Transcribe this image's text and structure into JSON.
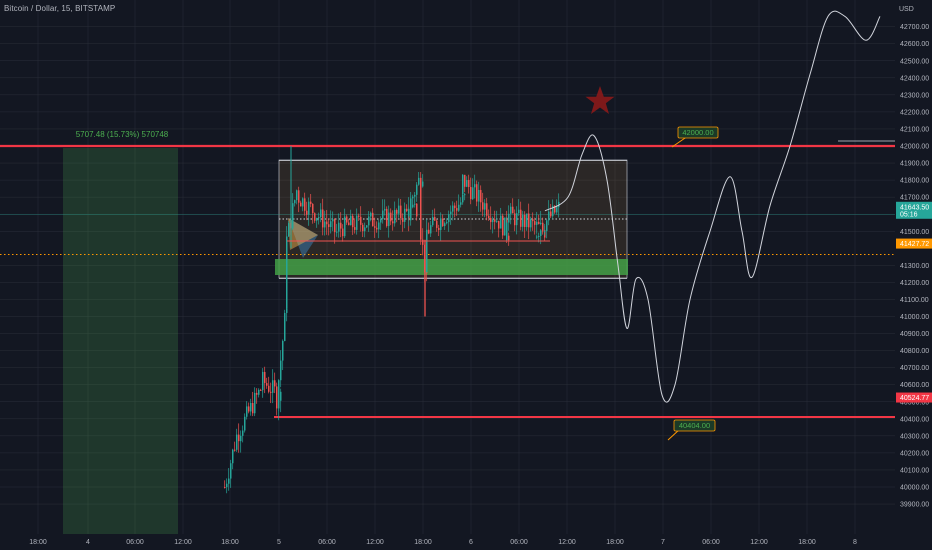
{
  "header": {
    "symbol": "Bitcoin / Dollar, 15, BITSTAMP"
  },
  "chart_data": {
    "type": "candlestick",
    "y_axis": {
      "currency": "USD",
      "range": [
        39900,
        42720
      ],
      "ticks": [
        39900,
        40000,
        40100,
        40200,
        40300,
        40400,
        40500,
        40600,
        40700,
        40800,
        40900,
        41000,
        41100,
        41200,
        41300,
        41500,
        41600,
        41700,
        41800,
        41900,
        42000,
        42100,
        42200,
        42300,
        42400,
        42500,
        42600,
        42700
      ],
      "tick_labels": [
        "39900.00",
        "40000.00",
        "40100.00",
        "40200.00",
        "40300.00",
        "40400.00",
        "40500.00",
        "40600.00",
        "40700.00",
        "40800.00",
        "40900.00",
        "41000.00",
        "41100.00",
        "41200.00",
        "41300.00",
        "41500.00",
        "41600.00",
        "41700.00",
        "41800.00",
        "41900.00",
        "42000.00",
        "42100.00",
        "42200.00",
        "42300.00",
        "42400.00",
        "42500.00",
        "42600.00",
        "42700.00"
      ]
    },
    "x_axis": {
      "tick_labels": [
        "18:00",
        "4",
        "06:00",
        "12:00",
        "18:00",
        "5",
        "06:00",
        "12:00",
        "18:00",
        "6",
        "06:00",
        "12:00",
        "18:00",
        "7",
        "06:00",
        "12:00",
        "18:00",
        "8"
      ]
    },
    "price_labels": [
      {
        "text": "41643.50",
        "value": 41643.5,
        "color": "#26a69a",
        "sub": "05:16"
      },
      {
        "text": "41427.72",
        "value": 41427.72,
        "color": "#ff9800"
      },
      {
        "text": "40524.77",
        "value": 40524.77,
        "color": "#f23645"
      }
    ],
    "horizontal_lines": [
      {
        "value": 42000,
        "color": "#f23645"
      },
      {
        "value": 40524.77,
        "color": "#f23645"
      },
      {
        "value": 41427.72,
        "color": "#ff9800",
        "style": "dotted"
      },
      {
        "value": 41643.5,
        "color": "#26a69a",
        "style": "solid-thin"
      }
    ],
    "annotations": {
      "measure_label": "5707.48 (15.73%) 570748",
      "target_high": "42000.00",
      "target_low": "40404.00"
    },
    "range_box": {
      "top": 41940,
      "bottom": 41290,
      "midline": 41600,
      "support_zone": [
        41320,
        41400
      ]
    },
    "projection_path": [
      {
        "x": 545,
        "y": 41620
      },
      {
        "x": 568,
        "y": 41700
      },
      {
        "x": 582,
        "y": 41950
      },
      {
        "x": 594,
        "y": 42060
      },
      {
        "x": 607,
        "y": 41800
      },
      {
        "x": 618,
        "y": 41300
      },
      {
        "x": 627,
        "y": 40930
      },
      {
        "x": 636,
        "y": 41220
      },
      {
        "x": 648,
        "y": 41100
      },
      {
        "x": 662,
        "y": 40540
      },
      {
        "x": 675,
        "y": 40600
      },
      {
        "x": 690,
        "y": 41100
      },
      {
        "x": 710,
        "y": 41500
      },
      {
        "x": 730,
        "y": 41820
      },
      {
        "x": 742,
        "y": 41500
      },
      {
        "x": 752,
        "y": 41230
      },
      {
        "x": 770,
        "y": 41650
      },
      {
        "x": 790,
        "y": 42000
      },
      {
        "x": 810,
        "y": 42420
      },
      {
        "x": 828,
        "y": 42760
      },
      {
        "x": 845,
        "y": 42760
      },
      {
        "x": 866,
        "y": 42620
      },
      {
        "x": 880,
        "y": 42760
      }
    ]
  }
}
